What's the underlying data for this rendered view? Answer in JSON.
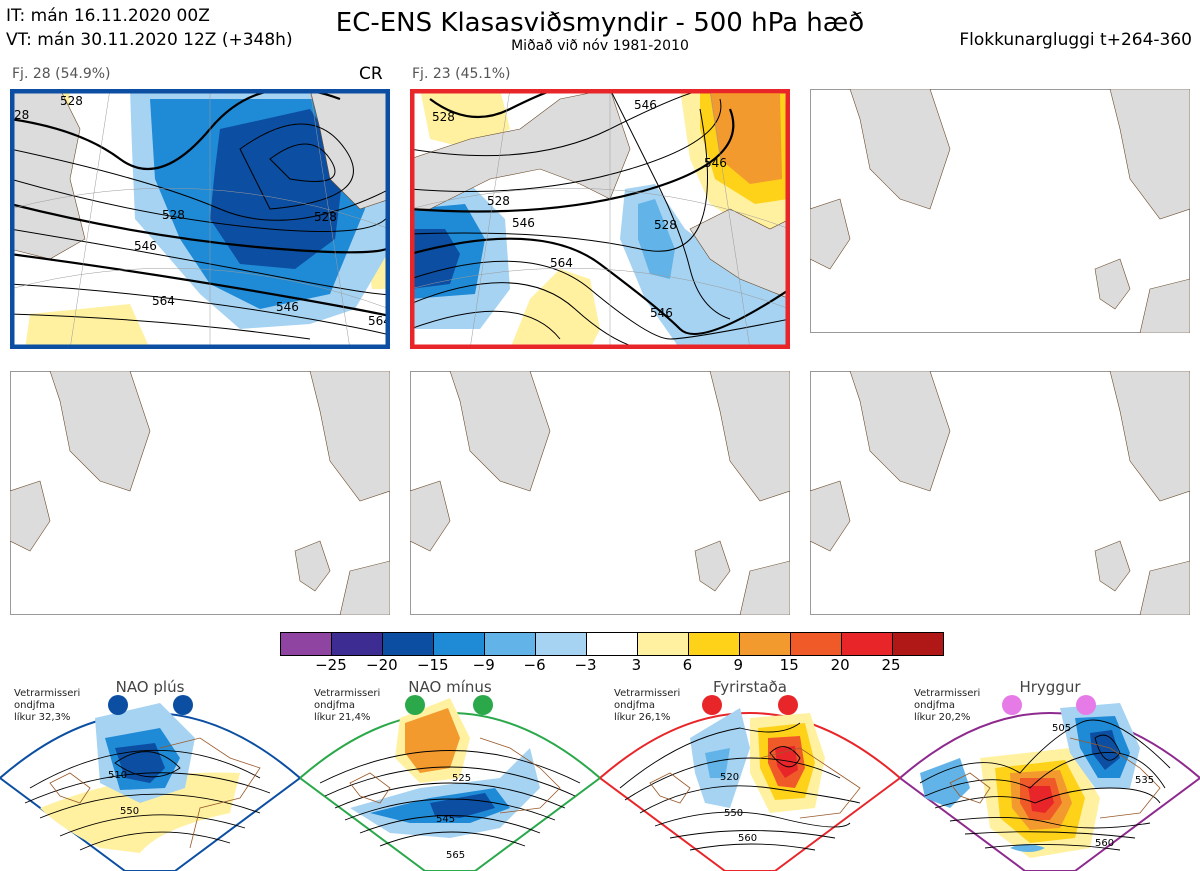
{
  "header": {
    "init_time": "IT: mán 16.11.2020 00Z",
    "valid_time": "VT: mán 30.11.2020 12Z  (+348h)",
    "title": "EC-ENS Klasasviðsmyndir - 500 hPa hæð",
    "subtitle": "Miðað við nóv 1981-2010",
    "window": "Flokkunargluggi t+264-360"
  },
  "panels": [
    {
      "label": "Fj. 28 (54.9%)",
      "tag": "CR",
      "frame_color": "#0b4ea2",
      "contour_labels": [
        "528",
        "528",
        "546",
        "546",
        "564",
        "564",
        "528",
        "28"
      ]
    },
    {
      "label": "Fj. 23 (45.1%)",
      "tag": "",
      "frame_color": "#e8262a",
      "contour_labels": [
        "528",
        "546",
        "564",
        "546",
        "546",
        "528",
        "528",
        "546"
      ]
    },
    {
      "label": "",
      "tag": "",
      "frame_color": ""
    },
    {
      "label": "",
      "tag": "",
      "frame_color": ""
    },
    {
      "label": "",
      "tag": "",
      "frame_color": ""
    },
    {
      "label": "",
      "tag": "",
      "frame_color": ""
    }
  ],
  "colorbar": {
    "colors": [
      "#8e44a0",
      "#3d2d92",
      "#0b4ea2",
      "#1f8ad6",
      "#62b4e8",
      "#a6d3f2",
      "#ffffff",
      "#fff1a0",
      "#ffd21a",
      "#f29a2e",
      "#f05a28",
      "#e8262a",
      "#b01818"
    ],
    "ticks": [
      "−25",
      "−20",
      "−15",
      "−9",
      "−6",
      "−3",
      "3",
      "6",
      "9",
      "15",
      "20",
      "25"
    ]
  },
  "regimes": [
    {
      "name": "NAO plús",
      "note": [
        "Vetrarmisseri",
        "ondjfma",
        "líkur 32,3%"
      ],
      "color": "#0b4ea2",
      "dot_color": "#0b4ea2",
      "contour_labels": [
        "510",
        "550"
      ]
    },
    {
      "name": "NAO mínus",
      "note": [
        "Vetrarmisseri",
        "ondjfma",
        "líkur 21,4%"
      ],
      "color": "#2aa84a",
      "dot_color": "#2aa84a",
      "contour_labels": [
        "525",
        "545",
        "565"
      ]
    },
    {
      "name": "Fyrirstaða",
      "note": [
        "Vetrarmisseri",
        "ondjfma",
        "líkur 26,1%"
      ],
      "color": "#e8262a",
      "dot_color": "#e8262a",
      "contour_labels": [
        "520",
        "550",
        "560"
      ]
    },
    {
      "name": "Hryggur",
      "note": [
        "Vetrarmisseri",
        "ondjfma",
        "líkur 20,2%"
      ],
      "color": "#8e2a8e",
      "dot_color": "#e67ae6",
      "contour_labels": [
        "505",
        "535",
        "560"
      ]
    }
  ]
}
